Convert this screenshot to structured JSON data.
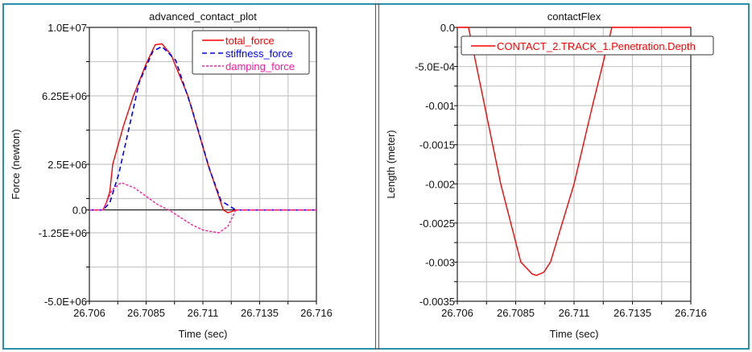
{
  "chart_data": [
    {
      "type": "line",
      "title": "advanced_contact_plot",
      "xlabel": "Time (sec)",
      "ylabel": "Force (newton)",
      "xlim": [
        26.706,
        26.716
      ],
      "ylim": [
        -5000000,
        10000000
      ],
      "x_ticks": [
        26.706,
        26.7085,
        26.711,
        26.7135,
        26.716
      ],
      "x_tick_labels": [
        "26.706",
        "26.7085",
        "26.711",
        "26.7135",
        "26.716"
      ],
      "y_ticks": [
        10000000,
        6250000,
        2500000,
        0,
        -1250000,
        -5000000
      ],
      "y_tick_labels": [
        "1.0E+07",
        "6.25E+06",
        "2.5E+06",
        "0.0",
        "-1.25E+06",
        "-5.0E+06"
      ],
      "grid": true,
      "legend_position": "top-right",
      "series": [
        {
          "name": "total_force",
          "color": "#ff0000",
          "style": "solid",
          "points": [
            [
              26.706,
              0
            ],
            [
              26.7066,
              0
            ],
            [
              26.70675,
              400000
            ],
            [
              26.7069,
              1000000
            ],
            [
              26.70703,
              2500000
            ],
            [
              26.7075,
              4600000
            ],
            [
              26.70794,
              6250000
            ],
            [
              26.7085,
              8000000
            ],
            [
              26.7089,
              9050000
            ],
            [
              26.7092,
              9100000
            ],
            [
              26.7096,
              8500000
            ],
            [
              26.71034,
              6250000
            ],
            [
              26.71122,
              2500000
            ],
            [
              26.7119,
              0
            ],
            [
              26.7121,
              -150000
            ],
            [
              26.71245,
              0
            ],
            [
              26.716,
              0
            ]
          ]
        },
        {
          "name": "stiffness_force",
          "color": "#0000ff",
          "style": "dashed",
          "points": [
            [
              26.706,
              0
            ],
            [
              26.7066,
              0
            ],
            [
              26.7069,
              400000
            ],
            [
              26.7073,
              2000000
            ],
            [
              26.7078,
              4800000
            ],
            [
              26.7082,
              7000000
            ],
            [
              26.7088,
              8700000
            ],
            [
              26.7092,
              8950000
            ],
            [
              26.7098,
              8200000
            ],
            [
              26.7105,
              5600000
            ],
            [
              26.7113,
              2200000
            ],
            [
              26.7118,
              500000
            ],
            [
              26.71245,
              0
            ],
            [
              26.716,
              0
            ]
          ]
        },
        {
          "name": "damping_force",
          "color": "#ff1aa0",
          "style": "dotted",
          "points": [
            [
              26.706,
              0
            ],
            [
              26.7066,
              0
            ],
            [
              26.707,
              1100000
            ],
            [
              26.7074,
              1500000
            ],
            [
              26.708,
              1200000
            ],
            [
              26.709,
              300000
            ],
            [
              26.7095,
              0
            ],
            [
              26.7105,
              -800000
            ],
            [
              26.711,
              -1100000
            ],
            [
              26.7117,
              -1250000
            ],
            [
              26.7121,
              -900000
            ],
            [
              26.71245,
              0
            ],
            [
              26.716,
              0
            ]
          ]
        }
      ]
    },
    {
      "type": "line",
      "title": "contactFlex",
      "xlabel": "Time (sec)",
      "ylabel": "Length (meter)",
      "xlim": [
        26.706,
        26.716
      ],
      "ylim": [
        -0.0035,
        0
      ],
      "x_ticks": [
        26.706,
        26.7085,
        26.711,
        26.7135,
        26.716
      ],
      "x_tick_labels": [
        "26.706",
        "26.7085",
        "26.711",
        "26.7135",
        "26.716"
      ],
      "y_ticks": [
        0,
        -0.0005,
        -0.001,
        -0.0015,
        -0.002,
        -0.0025,
        -0.003,
        -0.0035
      ],
      "y_tick_labels": [
        "0.0",
        "-5.0E-04",
        "-0.001",
        "-0.0015",
        "-0.002",
        "-0.0025",
        "-0.003",
        "-0.0035"
      ],
      "grid": true,
      "legend_position": "top",
      "series": [
        {
          "name": "CONTACT_2.TRACK_1.Penetration.Depth",
          "color": "#ff0000",
          "style": "solid",
          "points": [
            [
              26.706,
              0
            ],
            [
              26.70648,
              0
            ],
            [
              26.70717,
              -0.001
            ],
            [
              26.70786,
              -0.002
            ],
            [
              26.70872,
              -0.003
            ],
            [
              26.7092,
              -0.00315
            ],
            [
              26.70938,
              -0.00317
            ],
            [
              26.7097,
              -0.00313
            ],
            [
              26.70999,
              -0.003
            ],
            [
              26.711,
              -0.002
            ],
            [
              26.71179,
              -0.001
            ],
            [
              26.71262,
              0
            ],
            [
              26.716,
              0
            ]
          ]
        }
      ]
    }
  ]
}
